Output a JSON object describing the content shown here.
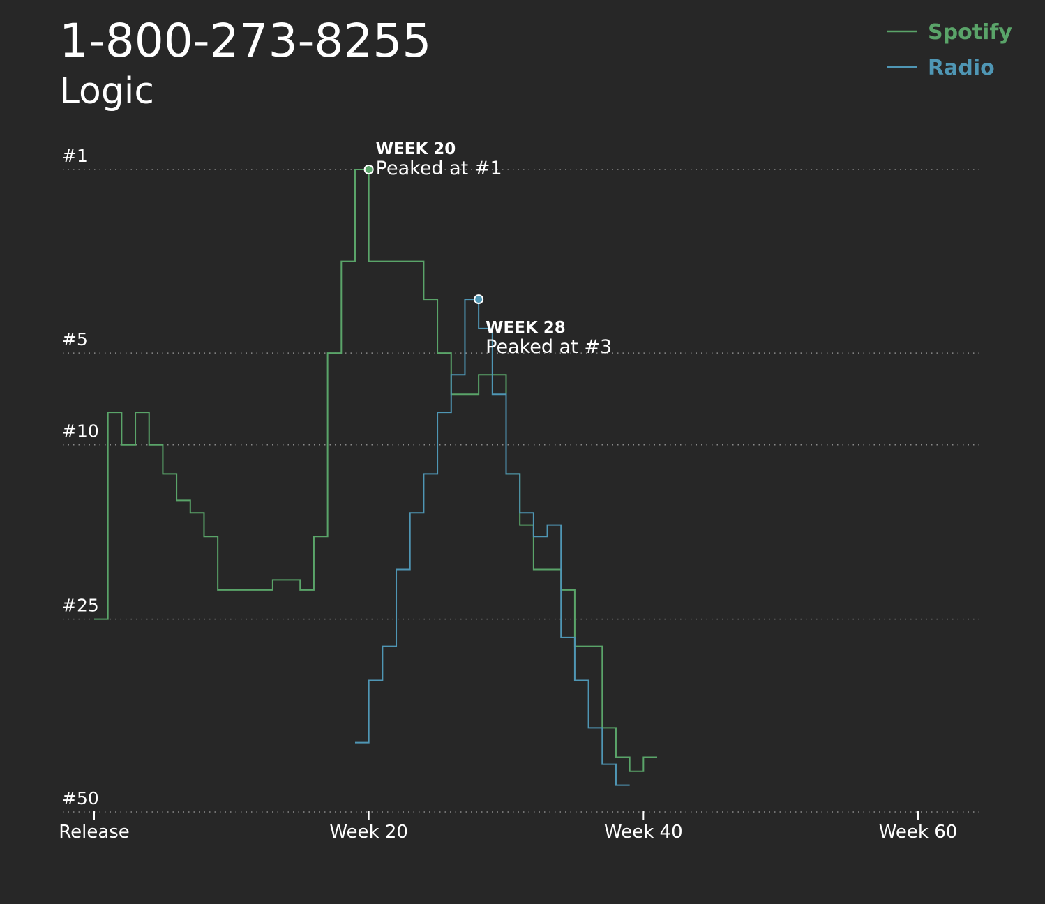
{
  "chart_data": {
    "type": "line",
    "step": true,
    "title": "1-800-273-8255",
    "subtitle": "Logic",
    "y_scale": "rank-sqrt",
    "ylim": [
      1,
      50
    ],
    "ytick_values": [
      1,
      5,
      10,
      25,
      50
    ],
    "ytick_labels": [
      "#1",
      "#5",
      "#10",
      "#25",
      "#50"
    ],
    "xlim": [
      0,
      65
    ],
    "xtick_values": [
      0,
      20,
      40,
      60
    ],
    "xtick_labels": [
      "Release",
      "Week 20",
      "Week 40",
      "Week 60"
    ],
    "grid": true,
    "legend_position": "top-right",
    "series": [
      {
        "name": "Spotify",
        "color": "#5aa469",
        "x": [
          1,
          2,
          3,
          4,
          5,
          6,
          7,
          8,
          9,
          10,
          11,
          12,
          13,
          14,
          15,
          16,
          17,
          18,
          19,
          20,
          21,
          22,
          23,
          24,
          25,
          26,
          27,
          28,
          29,
          30,
          31,
          32,
          33,
          34,
          35,
          36,
          37,
          38,
          39,
          40,
          41
        ],
        "values": [
          25,
          8,
          10,
          8,
          10,
          12,
          14,
          15,
          17,
          22,
          22,
          22,
          22,
          21,
          21,
          22,
          17,
          5,
          2,
          1,
          2,
          2,
          2,
          2,
          3,
          5,
          7,
          7,
          6,
          6,
          12,
          16,
          20,
          20,
          22,
          28,
          28,
          38,
          42,
          44,
          42
        ]
      },
      {
        "name": "Radio",
        "color": "#4f96b4",
        "x": [
          20,
          21,
          22,
          23,
          24,
          25,
          26,
          27,
          28,
          29,
          30,
          31,
          32,
          33,
          34,
          35,
          36,
          37,
          38,
          39
        ],
        "values": [
          40,
          32,
          28,
          20,
          15,
          12,
          8,
          6,
          3,
          4,
          7,
          12,
          15,
          17,
          16,
          27,
          32,
          38,
          43,
          46
        ]
      }
    ],
    "annotations": [
      {
        "series": "Spotify",
        "x": 20,
        "value": 1,
        "heading": "WEEK 20",
        "text": "Peaked at #1"
      },
      {
        "series": "Radio",
        "x": 28,
        "value": 3,
        "heading": "WEEK 28",
        "text": "Peaked at #3"
      }
    ]
  }
}
